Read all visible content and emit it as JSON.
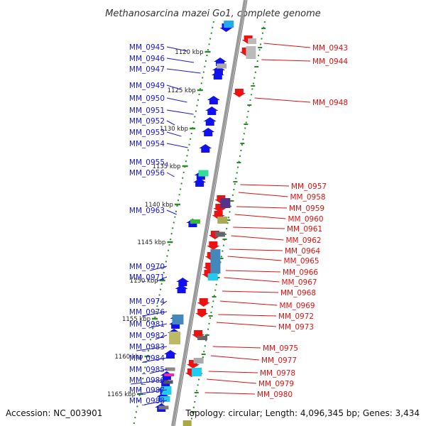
{
  "title": "Methanosarcina mazei Go1, complete genome",
  "footer": {
    "accession": "Accession: NC_003901",
    "topology": "Topology: circular; Length: 4,096,345 bp; Genes: 3,434"
  },
  "colors": {
    "left_labels": "#1a1acc",
    "right_labels": "#dd1111",
    "backbone": "#9a9a9a",
    "tick_track": "#2a8a2a",
    "forward_gene": "#1111ee",
    "reverse_gene": "#ee1111"
  },
  "ticks": [
    "1120 kbp",
    "1125 kbp",
    "1130 kbp",
    "1135 kbp",
    "1140 kbp",
    "1145 kbp",
    "1150 kbp",
    "1155 kbp",
    "1160 kbp",
    "1165 kbp"
  ],
  "left_genes": [
    "MM_0945",
    "MM_0946",
    "MM_0947",
    "MM_0949",
    "MM_0950",
    "MM_0951",
    "MM_0952",
    "MM_0953",
    "MM_0954",
    "MM_0955",
    "MM_0956",
    "MM_0963",
    "MM_0970",
    "MM_0971",
    "MM_0974",
    "MM_0976",
    "MM_0981",
    "MM_0982",
    "MM_0983",
    "MM_0984",
    "MM_0985",
    "MM_0986",
    "MM_0987",
    "MM_0988"
  ],
  "right_genes": [
    "MM_0943",
    "MM_0944",
    "MM_0948",
    "MM_0957",
    "MM_0958",
    "MM_0959",
    "MM_0960",
    "MM_0961",
    "MM_0962",
    "MM_0964",
    "MM_0965",
    "MM_0966",
    "MM_0967",
    "MM_0968",
    "MM_0969",
    "MM_0972",
    "MM_0973",
    "MM_0975",
    "MM_0977",
    "MM_0978",
    "MM_0979",
    "MM_0980"
  ]
}
